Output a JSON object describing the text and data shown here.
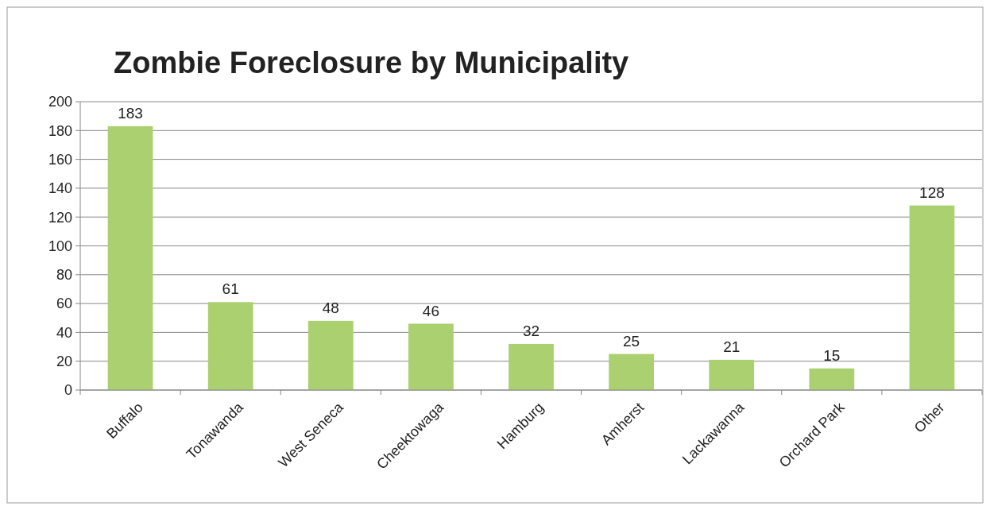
{
  "chart_data": {
    "type": "bar",
    "title": "Zombie Foreclosure by Municipality",
    "categories": [
      "Buffalo",
      "Tonawanda",
      "West Seneca",
      "Cheektowaga",
      "Hamburg",
      "Amherst",
      "Lackawanna",
      "Orchard Park",
      "Other"
    ],
    "values": [
      183,
      61,
      48,
      46,
      32,
      25,
      21,
      15,
      128
    ],
    "color": "#abd06f",
    "ylim": [
      0,
      200
    ],
    "yticks": [
      0,
      20,
      40,
      60,
      80,
      100,
      120,
      140,
      160,
      180,
      200
    ],
    "grid": "y",
    "data_labels": true
  }
}
